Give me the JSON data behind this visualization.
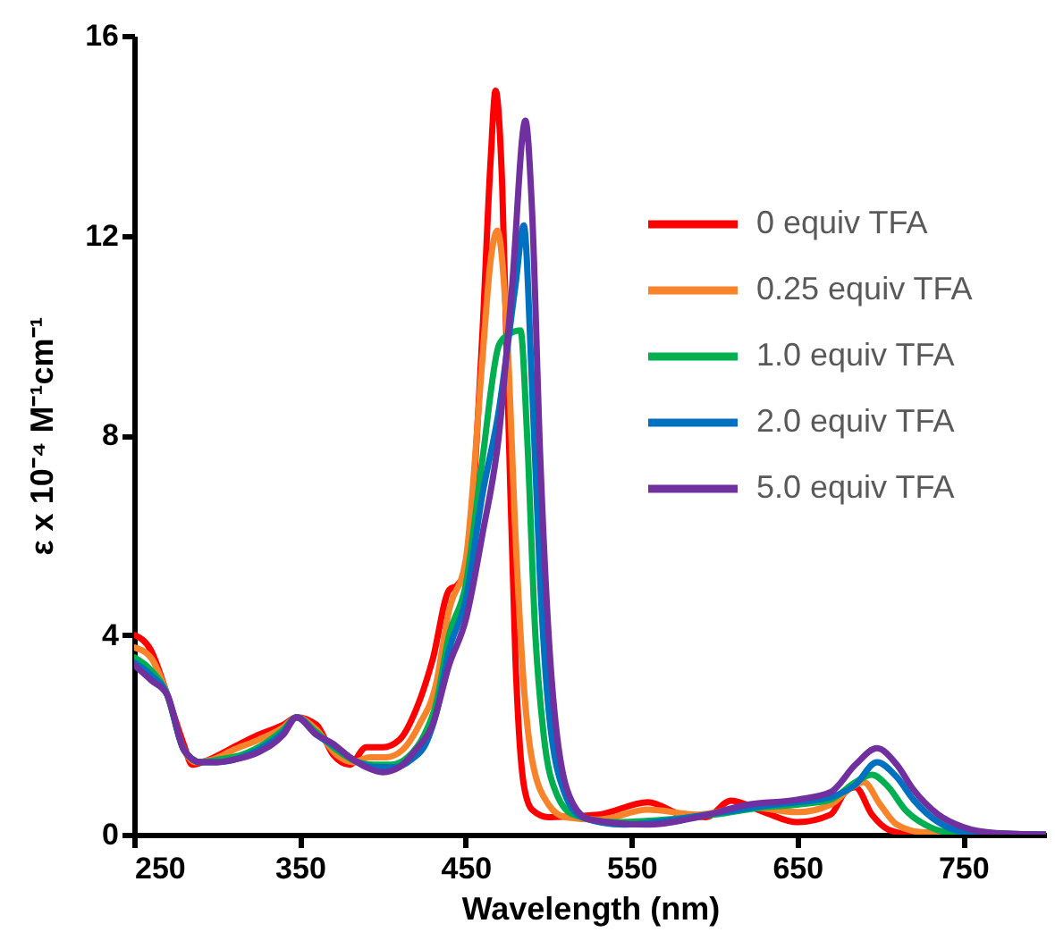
{
  "chart_data": {
    "type": "line",
    "xlabel": "Wavelength (nm)",
    "ylabel": "ε x 10⁻⁴ M⁻¹cm⁻¹",
    "xlim": [
      250,
      800
    ],
    "ylim": [
      0,
      16
    ],
    "xticks": [
      250,
      350,
      450,
      550,
      650,
      750
    ],
    "yticks": [
      0,
      4,
      8,
      12,
      16
    ],
    "legend": "top right",
    "line_style": "solid",
    "series": [
      {
        "name": "0 equiv TFA",
        "color": "#ff0000",
        "x": [
          250,
          260,
          270,
          280,
          285,
          295,
          310,
          325,
          340,
          348,
          360,
          370,
          380,
          390,
          400,
          410,
          420,
          430,
          440,
          445,
          450,
          460,
          465,
          468,
          472,
          476,
          480,
          485,
          490,
          500,
          530,
          560,
          580,
          595,
          610,
          630,
          650,
          670,
          680,
          685,
          695,
          705,
          720,
          800
        ],
        "values": [
          4.0,
          3.7,
          2.8,
          1.8,
          1.4,
          1.5,
          1.75,
          2.0,
          2.2,
          2.35,
          2.2,
          1.6,
          1.4,
          1.75,
          1.75,
          1.9,
          2.5,
          3.5,
          4.9,
          5.0,
          5.3,
          10.0,
          13.5,
          14.9,
          13.0,
          8.0,
          3.5,
          1.0,
          0.5,
          0.35,
          0.4,
          0.65,
          0.4,
          0.35,
          0.68,
          0.45,
          0.25,
          0.4,
          0.9,
          0.95,
          0.4,
          0.1,
          0.0,
          0.0
        ]
      },
      {
        "name": "0.25 equiv TFA",
        "color": "#f7832a",
        "x": [
          250,
          260,
          270,
          280,
          287,
          297,
          310,
          325,
          340,
          348,
          360,
          372,
          382,
          392,
          402,
          412,
          422,
          432,
          440,
          450,
          460,
          465,
          469,
          475,
          480,
          485,
          490,
          500,
          510,
          530,
          560,
          590,
          620,
          650,
          670,
          683,
          690,
          700,
          710,
          725,
          800
        ],
        "values": [
          3.75,
          3.55,
          2.8,
          1.7,
          1.45,
          1.5,
          1.7,
          1.9,
          2.15,
          2.35,
          2.1,
          1.6,
          1.45,
          1.55,
          1.55,
          1.7,
          2.2,
          3.0,
          4.5,
          5.5,
          9.5,
          11.5,
          12.1,
          10.0,
          6.0,
          3.0,
          1.5,
          0.6,
          0.35,
          0.3,
          0.5,
          0.4,
          0.55,
          0.45,
          0.6,
          0.95,
          1.05,
          0.6,
          0.2,
          0.05,
          0.0
        ]
      },
      {
        "name": "1.0 equiv TFA",
        "color": "#00b050",
        "x": [
          250,
          260,
          270,
          280,
          290,
          300,
          315,
          330,
          340,
          348,
          360,
          372,
          385,
          395,
          405,
          415,
          425,
          432,
          440,
          450,
          460,
          470,
          475,
          483,
          487,
          492,
          497,
          505,
          515,
          540,
          570,
          600,
          630,
          650,
          670,
          685,
          695,
          705,
          715,
          730,
          745,
          800
        ],
        "values": [
          3.55,
          3.3,
          2.8,
          1.7,
          1.45,
          1.5,
          1.6,
          1.85,
          2.1,
          2.35,
          2.05,
          1.7,
          1.45,
          1.4,
          1.4,
          1.55,
          2.0,
          2.6,
          4.0,
          5.0,
          7.5,
          9.8,
          10.0,
          10.1,
          8.0,
          4.0,
          2.0,
          0.8,
          0.4,
          0.25,
          0.3,
          0.4,
          0.55,
          0.6,
          0.7,
          1.05,
          1.2,
          0.95,
          0.5,
          0.15,
          0.03,
          0.0
        ]
      },
      {
        "name": "2.0 equiv TFA",
        "color": "#0070c0",
        "x": [
          250,
          260,
          270,
          280,
          290,
          300,
          315,
          330,
          340,
          348,
          360,
          372,
          385,
          397,
          407,
          417,
          427,
          432,
          440,
          450,
          460,
          470,
          480,
          485,
          490,
          495,
          500,
          510,
          520,
          545,
          575,
          605,
          635,
          650,
          670,
          685,
          698,
          710,
          720,
          735,
          750,
          800
        ],
        "values": [
          3.45,
          3.2,
          2.8,
          1.7,
          1.45,
          1.45,
          1.55,
          1.8,
          2.05,
          2.35,
          2.0,
          1.75,
          1.45,
          1.35,
          1.35,
          1.5,
          1.9,
          2.4,
          3.7,
          4.7,
          6.8,
          8.5,
          11.0,
          12.2,
          9.0,
          5.0,
          2.5,
          0.8,
          0.35,
          0.2,
          0.3,
          0.45,
          0.6,
          0.65,
          0.75,
          1.0,
          1.45,
          1.15,
          0.7,
          0.25,
          0.06,
          0.0
        ]
      },
      {
        "name": "5.0 equiv TFA",
        "color": "#7030a0",
        "x": [
          250,
          260,
          270,
          280,
          290,
          300,
          310,
          325,
          340,
          348,
          360,
          370,
          380,
          390,
          400,
          410,
          420,
          430,
          440,
          450,
          460,
          470,
          478,
          486,
          490,
          495,
          500,
          505,
          515,
          525,
          560,
          590,
          620,
          650,
          670,
          685,
          698,
          710,
          720,
          735,
          750,
          770,
          800
        ],
        "values": [
          3.4,
          3.1,
          2.8,
          1.7,
          1.45,
          1.45,
          1.5,
          1.65,
          2.0,
          2.35,
          2.0,
          1.82,
          1.55,
          1.35,
          1.25,
          1.35,
          1.7,
          2.2,
          3.4,
          4.3,
          6.0,
          8.0,
          11.0,
          14.3,
          12.5,
          7.5,
          4.0,
          2.0,
          0.6,
          0.3,
          0.2,
          0.35,
          0.6,
          0.7,
          0.85,
          1.4,
          1.73,
          1.4,
          0.9,
          0.4,
          0.15,
          0.03,
          0.0
        ]
      }
    ]
  }
}
